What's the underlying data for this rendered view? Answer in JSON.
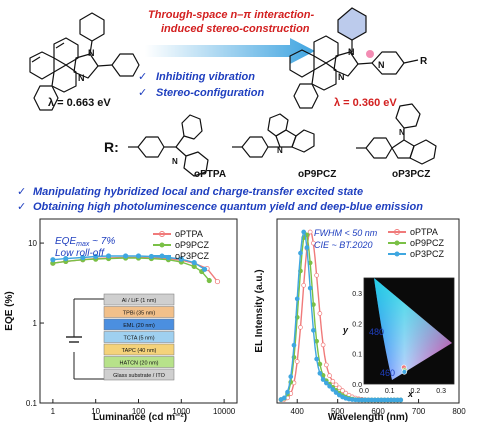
{
  "header": {
    "line1": "Through-space n–π interaction-",
    "line2": "induced stereo-construction",
    "red_color": "#d32020",
    "blue_color": "#1f3fbf"
  },
  "features": [
    "Inhibiting vibration",
    "Stereo-configuration"
  ],
  "check_mark": "✓",
  "lambda_left": "λ = 0.663 eV",
  "lambda_right": "λ = 0.360 eV",
  "atoms": {
    "N": "N",
    "R": "R"
  },
  "r_label": "R:",
  "substituents": [
    "oPTPA",
    "oP9PCZ",
    "oP3PCZ"
  ],
  "bullets": [
    "Manipulating hybridized local and charge-transfer excited state",
    "Obtaining high photoluminescence quantum yield and deep-blue emission"
  ],
  "legend_colors": {
    "oPTPA": "#f07a7a",
    "oP9PCZ": "#7ac046",
    "oP3PCZ": "#3fa7e0"
  },
  "chart_data": [
    {
      "type": "line",
      "xlabel": "Luminance (cd m⁻²)",
      "ylabel": "EQE (%)",
      "x_scale": "log",
      "y_scale": "log",
      "xlim": [
        0.5,
        20000
      ],
      "ylim": [
        0.1,
        20
      ],
      "x_ticks": [
        "1",
        "10",
        "100",
        "1000",
        "10000"
      ],
      "y_ticks": [
        "0.1",
        "1",
        "10"
      ],
      "annotations": [
        "EQE",
        "max",
        " ~ 7%",
        "Low roll-off"
      ],
      "series": [
        {
          "name": "oPTPA",
          "x": [
            1,
            2,
            5,
            10,
            20,
            50,
            100,
            200,
            500,
            1000,
            2000,
            4000,
            7000
          ],
          "y": [
            5.6,
            5.9,
            6.2,
            6.4,
            6.5,
            6.6,
            6.6,
            6.5,
            6.4,
            6.1,
            5.6,
            4.8,
            3.3
          ]
        },
        {
          "name": "oP9PCZ",
          "x": [
            1,
            2,
            5,
            10,
            20,
            50,
            100,
            200,
            500,
            1000,
            2000,
            3000,
            4500
          ],
          "y": [
            5.6,
            5.9,
            6.2,
            6.3,
            6.4,
            6.5,
            6.5,
            6.4,
            6.2,
            5.8,
            5.1,
            4.4,
            3.4
          ]
        },
        {
          "name": "oP3PCZ",
          "x": [
            1,
            2,
            5,
            10,
            20,
            50,
            100,
            200,
            500,
            1000,
            2000,
            3500
          ],
          "y": [
            6.2,
            6.4,
            6.6,
            6.8,
            6.9,
            6.9,
            6.9,
            6.8,
            6.6,
            6.3,
            5.7,
            4.7
          ]
        }
      ]
    },
    {
      "type": "line",
      "xlabel": "Wavelength (nm)",
      "ylabel": "EL Intensity (a.u.)",
      "xlim": [
        350,
        800
      ],
      "x_ticks": [
        "400",
        "500",
        "600",
        "700",
        "800"
      ],
      "annotations": [
        "FWHM < 50 nm",
        "CIE ~ BT.2020"
      ],
      "series": [
        {
          "name": "oPTPA",
          "peak": 432,
          "fwhm": 44
        },
        {
          "name": "oP9PCZ",
          "peak": 420,
          "fwhm": 40
        },
        {
          "name": "oP3PCZ",
          "peak": 416,
          "fwhm": 38
        }
      ]
    },
    {
      "type": "scatter",
      "xlabel": "x",
      "ylabel": "y",
      "xlim": [
        0,
        0.35
      ],
      "ylim": [
        0,
        0.35
      ],
      "x_ticks": [
        "0.0",
        "0.1",
        "0.2",
        "0.3"
      ],
      "y_ticks": [
        "0.0",
        "0.1",
        "0.2",
        "0.3"
      ],
      "wavelength_labels": [
        "480",
        "460"
      ],
      "points": [
        {
          "name": "oPTPA",
          "x": 0.155,
          "y": 0.055
        },
        {
          "name": "oP9PCZ",
          "x": 0.158,
          "y": 0.045
        },
        {
          "name": "oP3PCZ",
          "x": 0.157,
          "y": 0.04
        }
      ]
    }
  ],
  "device_layers": [
    {
      "label": "Al / LiF (1 nm)",
      "color": "#cfcfcf"
    },
    {
      "label": "TPBi (35 nm)",
      "color": "#f2c08a"
    },
    {
      "label": "EML (20 nm)",
      "color": "#4b8fe0"
    },
    {
      "label": "TCTA (5 nm)",
      "color": "#9fd0f0"
    },
    {
      "label": "TAPC (40 nm)",
      "color": "#f4d27a"
    },
    {
      "label": "HATCN (20 nm)",
      "color": "#b7e28a"
    },
    {
      "label": "Glass substrate / ITO",
      "color": "#cfcfcf"
    }
  ]
}
